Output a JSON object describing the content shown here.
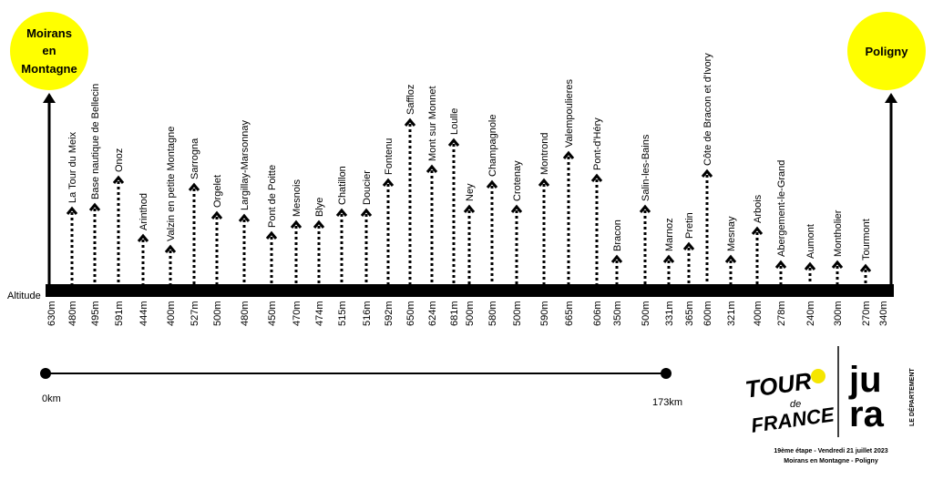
{
  "start": {
    "label_lines": [
      "Moirans",
      "en",
      "Montagne"
    ],
    "altitude": "630m",
    "color": "#ffff00"
  },
  "finish": {
    "label_lines": [
      "Poligny"
    ],
    "altitude": "340m",
    "color": "#ffff00"
  },
  "baseline_label": "Altitude",
  "waypoints": [
    {
      "name": "La Tour du Meix",
      "alt": "480m",
      "height": 0.43
    },
    {
      "name": "Base nautique de Bellecin",
      "alt": "495m",
      "height": 0.45
    },
    {
      "name": "Onoz",
      "alt": "591m",
      "height": 0.63
    },
    {
      "name": "Arinthod",
      "alt": "444m",
      "height": 0.25
    },
    {
      "name": "Valzin en petite Montagne",
      "alt": "400m",
      "height": 0.18
    },
    {
      "name": "Sarrogna",
      "alt": "527m",
      "height": 0.58
    },
    {
      "name": "Orgelet",
      "alt": "500m",
      "height": 0.4
    },
    {
      "name": "Largillay-Marsonnay",
      "alt": "480m",
      "height": 0.38
    },
    {
      "name": "Pont de Poitte",
      "alt": "450m",
      "height": 0.27
    },
    {
      "name": "Mesnois",
      "alt": "470m",
      "height": 0.34
    },
    {
      "name": "Blye",
      "alt": "474m",
      "height": 0.34
    },
    {
      "name": "Chatillon",
      "alt": "515m",
      "height": 0.42
    },
    {
      "name": "Doucier",
      "alt": "516m",
      "height": 0.42
    },
    {
      "name": "Fontenu",
      "alt": "592m",
      "height": 0.61
    },
    {
      "name": "Saffloz",
      "alt": "650m",
      "height": 1.0
    },
    {
      "name": "Mont sur Monnet",
      "alt": "624m",
      "height": 0.7
    },
    {
      "name": "Loulle",
      "alt": "681m",
      "height": 0.87
    },
    {
      "name": "Ney",
      "alt": "500m",
      "height": 0.44
    },
    {
      "name": "Champagnole",
      "alt": "580m",
      "height": 0.6
    },
    {
      "name": "Crotenay",
      "alt": "500m",
      "height": 0.44
    },
    {
      "name": "Montrond",
      "alt": "590m",
      "height": 0.61
    },
    {
      "name": "Valempoulieres",
      "alt": "665m",
      "height": 0.79
    },
    {
      "name": "Pont-d'Héry",
      "alt": "606m",
      "height": 0.64
    },
    {
      "name": "Bracon",
      "alt": "350m",
      "height": 0.12
    },
    {
      "name": "Salin-les-Bains",
      "alt": "500m",
      "height": 0.44
    },
    {
      "name": "Marnoz",
      "alt": "331m",
      "height": 0.12
    },
    {
      "name": "Pretin",
      "alt": "365m",
      "height": 0.2
    },
    {
      "name": "Côte de Bracon et d'Ivory",
      "alt": "600m",
      "height": 0.67
    },
    {
      "name": "Mesnay",
      "alt": "321m",
      "height": 0.12
    },
    {
      "name": "Arbois",
      "alt": "400m",
      "height": 0.3
    },
    {
      "name": "Abergement-le-Grand",
      "alt": "278m",
      "height": 0.08
    },
    {
      "name": "Aumont",
      "alt": "240m",
      "height": 0.07
    },
    {
      "name": "Montholier",
      "alt": "300m",
      "height": 0.08
    },
    {
      "name": "Tourmont",
      "alt": "270m",
      "height": 0.06
    }
  ],
  "distance": {
    "start_label": "0km",
    "end_label": "173km"
  },
  "logos": {
    "tdf_lines": [
      "TOUR",
      "de",
      "FRANCE"
    ],
    "tdf_accent": "#f5e600",
    "jura_top": "ju",
    "jura_bottom": "ra",
    "jura_side": "LE DÉPARTEMENT"
  },
  "caption": {
    "line1": "19ème étape - Vendredi 21 juillet 2023",
    "line2": "Moirans en Montagne - Poligny"
  }
}
